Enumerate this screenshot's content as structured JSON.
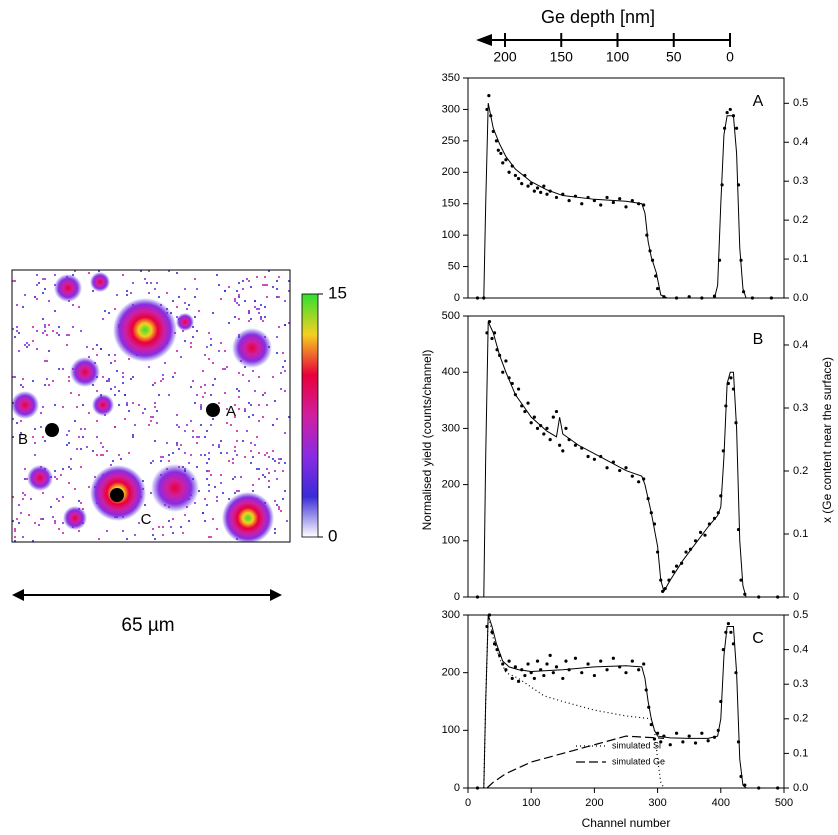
{
  "chart_data": [
    {
      "type": "map",
      "colorbar_lim": [
        0,
        15
      ],
      "colorbar_ticks": [
        0,
        15
      ],
      "colormap": [
        "#ffffff",
        "#3a2bd8",
        "#8a2be2",
        "#d01fa0",
        "#e8003a",
        "#f5d020",
        "#30e030"
      ],
      "points": [
        "A",
        "B",
        "C"
      ],
      "scale_label": "65 µm"
    },
    {
      "type": "line",
      "label": "A",
      "x2_label": "Ge depth [nm]",
      "x2lim": [
        224,
        0
      ],
      "x2ticks": [
        0,
        50,
        100,
        150,
        200
      ],
      "xlim": [
        0,
        500
      ],
      "ylim": [
        0,
        350
      ],
      "yticks": [
        0,
        50,
        100,
        150,
        200,
        250,
        300,
        350
      ],
      "y2lim": [
        0,
        0.565
      ],
      "y2ticks": [
        {
          "value": 0,
          "label": "0.0"
        },
        0.1,
        0.2,
        0.3,
        0.4,
        0.5
      ],
      "series": [
        {
          "style": "markers",
          "color": "#000000",
          "x": [
            15,
            25,
            30,
            33,
            36,
            40,
            45,
            48,
            52,
            55,
            60,
            65,
            70,
            75,
            80,
            85,
            90,
            95,
            100,
            105,
            110,
            115,
            120,
            125,
            130,
            140,
            150,
            160,
            170,
            180,
            190,
            200,
            210,
            220,
            230,
            240,
            250,
            260,
            270,
            278,
            283,
            288,
            292,
            297,
            300,
            310,
            330,
            350,
            370,
            390,
            398,
            402,
            406,
            410,
            415,
            420,
            425,
            428,
            432,
            436,
            450,
            480
          ],
          "values": [
            0,
            0,
            300,
            322,
            290,
            265,
            250,
            235,
            230,
            215,
            220,
            200,
            210,
            195,
            190,
            182,
            195,
            178,
            182,
            170,
            175,
            168,
            178,
            165,
            170,
            160,
            165,
            155,
            162,
            150,
            160,
            155,
            148,
            160,
            152,
            158,
            145,
            155,
            150,
            148,
            100,
            75,
            60,
            35,
            15,
            2,
            0,
            2,
            0,
            3,
            60,
            180,
            270,
            295,
            300,
            290,
            270,
            180,
            60,
            10,
            0,
            0
          ]
        },
        {
          "style": "solid",
          "color": "#000000",
          "x": [
            0,
            25,
            28,
            32,
            40,
            50,
            60,
            75,
            100,
            125,
            150,
            200,
            250,
            275,
            280,
            285,
            290,
            298,
            305,
            315,
            390,
            395,
            400,
            405,
            410,
            420,
            425,
            430,
            435,
            440,
            500
          ],
          "values": [
            0,
            0,
            150,
            310,
            270,
            245,
            225,
            205,
            185,
            172,
            163,
            157,
            154,
            150,
            135,
            90,
            65,
            40,
            5,
            0,
            0,
            20,
            150,
            260,
            290,
            290,
            230,
            80,
            15,
            0,
            0
          ]
        }
      ]
    },
    {
      "type": "line",
      "label": "B",
      "y_label": "Normalised yield (counts/channel)",
      "y2_label": "x (Ge content near the surface)",
      "xlim": [
        0,
        500
      ],
      "ylim": [
        0,
        500
      ],
      "yticks": [
        0,
        100,
        200,
        300,
        400,
        500
      ],
      "y2lim": [
        0,
        0.446
      ],
      "y2ticks": [
        0,
        0.1,
        0.2,
        0.3,
        0.4
      ],
      "series": [
        {
          "style": "markers",
          "color": "#000000",
          "x": [
            15,
            30,
            34,
            38,
            42,
            46,
            50,
            55,
            60,
            65,
            70,
            75,
            80,
            85,
            90,
            95,
            100,
            105,
            110,
            115,
            120,
            125,
            130,
            135,
            140,
            145,
            150,
            155,
            160,
            170,
            180,
            190,
            200,
            210,
            220,
            230,
            240,
            250,
            260,
            270,
            278,
            285,
            290,
            295,
            300,
            305,
            308,
            312,
            318,
            325,
            330,
            338,
            345,
            352,
            360,
            368,
            375,
            382,
            390,
            396,
            400,
            404,
            408,
            412,
            416,
            420,
            424,
            428,
            432,
            438,
            460,
            490
          ],
          "values": [
            0,
            470,
            490,
            460,
            470,
            440,
            430,
            400,
            420,
            390,
            380,
            360,
            370,
            340,
            330,
            345,
            310,
            320,
            300,
            305,
            290,
            300,
            280,
            320,
            330,
            270,
            260,
            300,
            280,
            270,
            265,
            250,
            245,
            250,
            230,
            240,
            225,
            230,
            215,
            205,
            210,
            175,
            150,
            130,
            80,
            30,
            10,
            15,
            30,
            45,
            55,
            60,
            80,
            85,
            100,
            115,
            110,
            130,
            140,
            150,
            180,
            260,
            340,
            380,
            390,
            370,
            310,
            120,
            30,
            5,
            0,
            0
          ]
        },
        {
          "style": "solid",
          "color": "#000000",
          "x": [
            0,
            25,
            28,
            32,
            40,
            50,
            60,
            75,
            100,
            125,
            140,
            145,
            150,
            175,
            200,
            225,
            250,
            275,
            280,
            290,
            300,
            305,
            310,
            320,
            340,
            360,
            380,
            395,
            400,
            405,
            410,
            415,
            420,
            425,
            430,
            435,
            440,
            500
          ],
          "values": [
            0,
            0,
            250,
            490,
            470,
            430,
            400,
            360,
            320,
            295,
            285,
            320,
            290,
            270,
            255,
            240,
            225,
            215,
            200,
            150,
            90,
            30,
            10,
            30,
            65,
            95,
            125,
            145,
            160,
            250,
            380,
            400,
            400,
            300,
            100,
            20,
            0,
            0
          ]
        }
      ]
    },
    {
      "type": "line",
      "label": "C",
      "x_label": "Channel number",
      "legend": "lower-center",
      "xlim": [
        0,
        500
      ],
      "xticks": [
        0,
        100,
        200,
        300,
        400,
        500
      ],
      "ylim": [
        0,
        300
      ],
      "yticks": [
        0,
        100,
        200,
        300
      ],
      "y2lim": [
        0,
        0.5
      ],
      "y2ticks": [
        {
          "value": 0,
          "label": "0.0"
        },
        0.1,
        0.2,
        0.3,
        0.4,
        0.5
      ],
      "series": [
        {
          "style": "markers",
          "color": "#000000",
          "x": [
            15,
            30,
            34,
            38,
            42,
            46,
            50,
            55,
            60,
            65,
            70,
            75,
            80,
            85,
            90,
            95,
            100,
            105,
            110,
            115,
            120,
            125,
            130,
            135,
            140,
            150,
            155,
            160,
            170,
            180,
            190,
            200,
            210,
            220,
            230,
            240,
            250,
            260,
            270,
            278,
            282,
            286,
            290,
            295,
            300,
            305,
            310,
            320,
            330,
            340,
            350,
            360,
            370,
            380,
            390,
            396,
            400,
            404,
            408,
            412,
            416,
            420,
            424,
            428,
            432,
            438,
            460,
            490
          ],
          "values": [
            0,
            280,
            300,
            270,
            250,
            240,
            230,
            215,
            205,
            220,
            190,
            210,
            185,
            205,
            195,
            215,
            200,
            190,
            220,
            205,
            195,
            215,
            230,
            200,
            210,
            190,
            220,
            205,
            225,
            200,
            215,
            195,
            220,
            205,
            225,
            210,
            200,
            220,
            205,
            215,
            170,
            140,
            110,
            85,
            95,
            80,
            90,
            75,
            95,
            80,
            90,
            78,
            95,
            82,
            88,
            100,
            150,
            240,
            270,
            285,
            270,
            250,
            200,
            80,
            20,
            5,
            0,
            0
          ]
        },
        {
          "style": "solid",
          "color": "#000000",
          "x": [
            0,
            25,
            28,
            32,
            38,
            45,
            55,
            65,
            80,
            100,
            150,
            200,
            250,
            275,
            280,
            285,
            290,
            295,
            300,
            320,
            350,
            380,
            395,
            400,
            405,
            410,
            420,
            425,
            430,
            435,
            440,
            500
          ],
          "values": [
            0,
            0,
            150,
            300,
            280,
            250,
            220,
            210,
            205,
            202,
            205,
            210,
            212,
            210,
            190,
            150,
            120,
            100,
            90,
            87,
            86,
            86,
            90,
            120,
            230,
            280,
            280,
            200,
            50,
            5,
            0,
            0
          ]
        },
        {
          "name": "simulated Si",
          "style": "dotted",
          "color": "#000000",
          "x": [
            25,
            28,
            32,
            40,
            50,
            60,
            80,
            100,
            120,
            150,
            200,
            250,
            290,
            295,
            300,
            305,
            310
          ],
          "values": [
            0,
            150,
            300,
            260,
            225,
            200,
            190,
            175,
            160,
            150,
            135,
            125,
            120,
            100,
            50,
            10,
            0
          ]
        },
        {
          "name": "simulated Ge",
          "style": "dashed",
          "color": "#000000",
          "x": [
            30,
            40,
            60,
            100,
            150,
            200,
            250,
            280,
            300,
            310
          ],
          "values": [
            0,
            10,
            25,
            45,
            60,
            75,
            90,
            88,
            87,
            86
          ]
        }
      ]
    }
  ]
}
